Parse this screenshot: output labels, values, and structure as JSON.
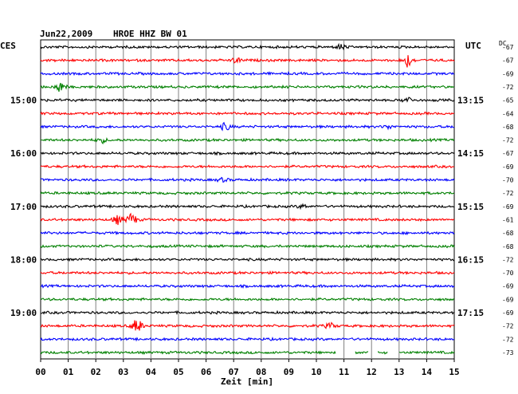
{
  "header": {
    "date": "Jun22,2009",
    "station": "HROE HHZ BW 01",
    "left_tz": "CES",
    "right_tz": "UTC",
    "dc_label": "DC"
  },
  "chart_data": {
    "type": "line",
    "title": "Jun22,2009   HROE HHZ BW 01",
    "xlabel": "Zeit [min]",
    "xlim": [
      0,
      15
    ],
    "x_ticks": [
      "00",
      "01",
      "02",
      "03",
      "04",
      "05",
      "06",
      "07",
      "08",
      "09",
      "10",
      "11",
      "12",
      "13",
      "14",
      "15"
    ],
    "left_labels": [
      {
        "row": 4,
        "text": "15:00"
      },
      {
        "row": 8,
        "text": "16:00"
      },
      {
        "row": 12,
        "text": "17:00"
      },
      {
        "row": 16,
        "text": "18:00"
      },
      {
        "row": 20,
        "text": "19:00"
      }
    ],
    "right_labels": [
      {
        "row": 4,
        "text": "13:15"
      },
      {
        "row": 8,
        "text": "14:15"
      },
      {
        "row": 12,
        "text": "15:15"
      },
      {
        "row": 16,
        "text": "16:15"
      },
      {
        "row": 20,
        "text": "17:15"
      }
    ],
    "trace_colors": [
      "#000000",
      "#ff0000",
      "#0000ff",
      "#008000"
    ],
    "traces": [
      {
        "dc": "-67",
        "color": "#000000",
        "events": [
          {
            "minute": 10.9,
            "amp": 3
          }
        ]
      },
      {
        "dc": "-67",
        "color": "#ff0000",
        "events": [
          {
            "minute": 7.1,
            "amp": 3
          },
          {
            "minute": 13.3,
            "amp": 8
          }
        ]
      },
      {
        "dc": "-69",
        "color": "#0000ff",
        "events": []
      },
      {
        "dc": "-72",
        "color": "#008000",
        "events": [
          {
            "minute": 0.7,
            "amp": 6
          }
        ]
      },
      {
        "dc": "-65",
        "color": "#000000",
        "events": [
          {
            "minute": 13.3,
            "amp": 3
          }
        ]
      },
      {
        "dc": "-64",
        "color": "#ff0000",
        "events": []
      },
      {
        "dc": "-68",
        "color": "#0000ff",
        "events": [
          {
            "minute": 6.7,
            "amp": 4
          },
          {
            "minute": 12.6,
            "amp": 2
          }
        ]
      },
      {
        "dc": "-72",
        "color": "#008000",
        "events": [
          {
            "minute": 2.2,
            "amp": 3
          }
        ]
      },
      {
        "dc": "-67",
        "color": "#000000",
        "events": []
      },
      {
        "dc": "-69",
        "color": "#ff0000",
        "events": []
      },
      {
        "dc": "-70",
        "color": "#0000ff",
        "events": [
          {
            "minute": 6.6,
            "amp": 2
          }
        ]
      },
      {
        "dc": "-72",
        "color": "#008000",
        "events": []
      },
      {
        "dc": "-69",
        "color": "#000000",
        "events": [
          {
            "minute": 9.5,
            "amp": 2
          }
        ]
      },
      {
        "dc": "-61",
        "color": "#ff0000",
        "events": [
          {
            "minute": 2.8,
            "amp": 5
          },
          {
            "minute": 3.3,
            "amp": 7
          }
        ]
      },
      {
        "dc": "-68",
        "color": "#0000ff",
        "events": []
      },
      {
        "dc": "-68",
        "color": "#008000",
        "events": []
      },
      {
        "dc": "-72",
        "color": "#000000",
        "events": []
      },
      {
        "dc": "-70",
        "color": "#ff0000",
        "events": []
      },
      {
        "dc": "-69",
        "color": "#0000ff",
        "events": []
      },
      {
        "dc": "-69",
        "color": "#008000",
        "events": []
      },
      {
        "dc": "-69",
        "color": "#000000",
        "events": []
      },
      {
        "dc": "-72",
        "color": "#ff0000",
        "events": [
          {
            "minute": 3.5,
            "amp": 8
          },
          {
            "minute": 10.5,
            "amp": 3
          }
        ]
      },
      {
        "dc": "-72",
        "color": "#0000ff",
        "events": []
      },
      {
        "dc": "-73",
        "color": "#008000",
        "events": []
      }
    ],
    "last_trace_gaps": [
      [
        10.7,
        11.4
      ],
      [
        11.9,
        12.2
      ],
      [
        12.6,
        13.0
      ]
    ],
    "grid": true
  }
}
